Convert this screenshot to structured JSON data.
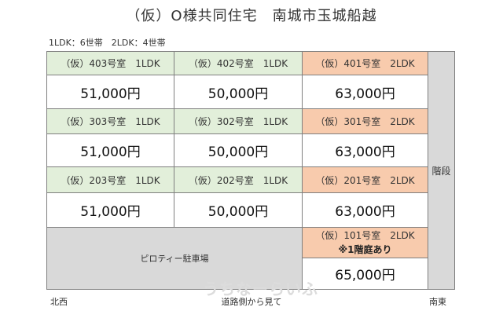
{
  "title": "（仮）O様共同住宅　南城市玉城船越",
  "meta": "1LDK：6世帯　2LDK：4世帯",
  "stairs": "階段",
  "pilotis": "ピロティー駐車場",
  "unit101": {
    "label": "（仮）101号室　2LDK",
    "note": "※1階庭あり",
    "price": "65,000円"
  },
  "rows": [
    {
      "units": [
        {
          "label": "（仮）403号室　1LDK",
          "price": "51,000円",
          "type": "1LDK"
        },
        {
          "label": "（仮）402号室　1LDK",
          "price": "50,000円",
          "type": "1LDK"
        },
        {
          "label": "（仮）401号室　2LDK",
          "price": "63,000円",
          "type": "2LDK"
        }
      ]
    },
    {
      "units": [
        {
          "label": "（仮）303号室　1LDK",
          "price": "51,000円",
          "type": "1LDK"
        },
        {
          "label": "（仮）302号室　1LDK",
          "price": "50,000円",
          "type": "1LDK"
        },
        {
          "label": "（仮）301号室　2LDK",
          "price": "63,000円",
          "type": "2LDK"
        }
      ]
    },
    {
      "units": [
        {
          "label": "（仮）203号室　1LDK",
          "price": "51,000円",
          "type": "1LDK"
        },
        {
          "label": "（仮）202号室　1LDK",
          "price": "50,000円",
          "type": "1LDK"
        },
        {
          "label": "（仮）201号室　2LDK",
          "price": "63,000円",
          "type": "2LDK"
        }
      ]
    }
  ],
  "corners": {
    "left": "北西",
    "right": "南東"
  },
  "road": "道路側から見て",
  "watermark": "うちなーらいふ",
  "colors": {
    "oneLDK": "#e2efda",
    "twoLDK": "#f8cbad",
    "common": "#d9d9d9"
  }
}
